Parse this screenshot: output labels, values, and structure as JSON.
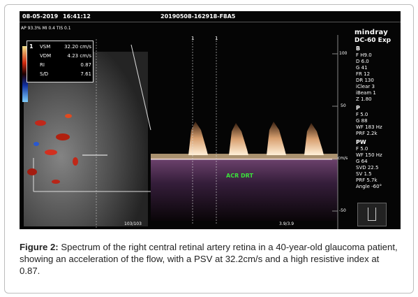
{
  "screen": {
    "date": "08-05-2019",
    "time": "16:41:12",
    "study_id": "20190508-162918-F8A5",
    "power_line": "AP 93.3%  MI 0.4  TIS 0.1",
    "brand": "mindray",
    "model": "DC-60 Exp",
    "b_label": "B",
    "b_params": [
      "F H9.0",
      "D 6.0",
      "G 41",
      "FR 12",
      "DR 130",
      "iClear 3",
      "iBeam 1",
      "Z 1.80"
    ],
    "p_label": "P",
    "p_params": [
      "F 5.0",
      "G 88",
      "WF 183 Hz",
      "PRF 2.2k"
    ],
    "pw_label": "PW",
    "pw_params": [
      "F 5.0",
      "WF 150 Hz",
      "G 64",
      "SVD 22.5",
      "SV 1.5",
      "PRF 5.7k",
      "Angle  -60°"
    ],
    "measurements": {
      "index": "1",
      "rows": [
        {
          "label": "VSM",
          "value": "32.20 cm/s"
        },
        {
          "label": "VDM",
          "value": "4.23 cm/s"
        },
        {
          "label": "RI",
          "value": "0.87"
        },
        {
          "label": "S/D",
          "value": "7.61"
        }
      ]
    },
    "scale_labels": {
      "top": "100",
      "mid": "50",
      "unit": "cm/s",
      "low": "-50"
    },
    "markers": [
      "1",
      "1"
    ],
    "vessel_label": "ACR DRT",
    "frame_counter_left": "103/103",
    "frame_counter_right": "3.9/3.9",
    "colors": {
      "background": "#050505",
      "doppler": "#d8a070",
      "vessel_label": "#3be23b"
    }
  },
  "caption": {
    "label": "Figure 2:",
    "text": " Spectrum of the right central retinal artery retina in a 40-year-old glaucoma patient, showing an acceleration of the flow, with a PSV at 32.2cm/s and a high resistive index at 0.87."
  }
}
